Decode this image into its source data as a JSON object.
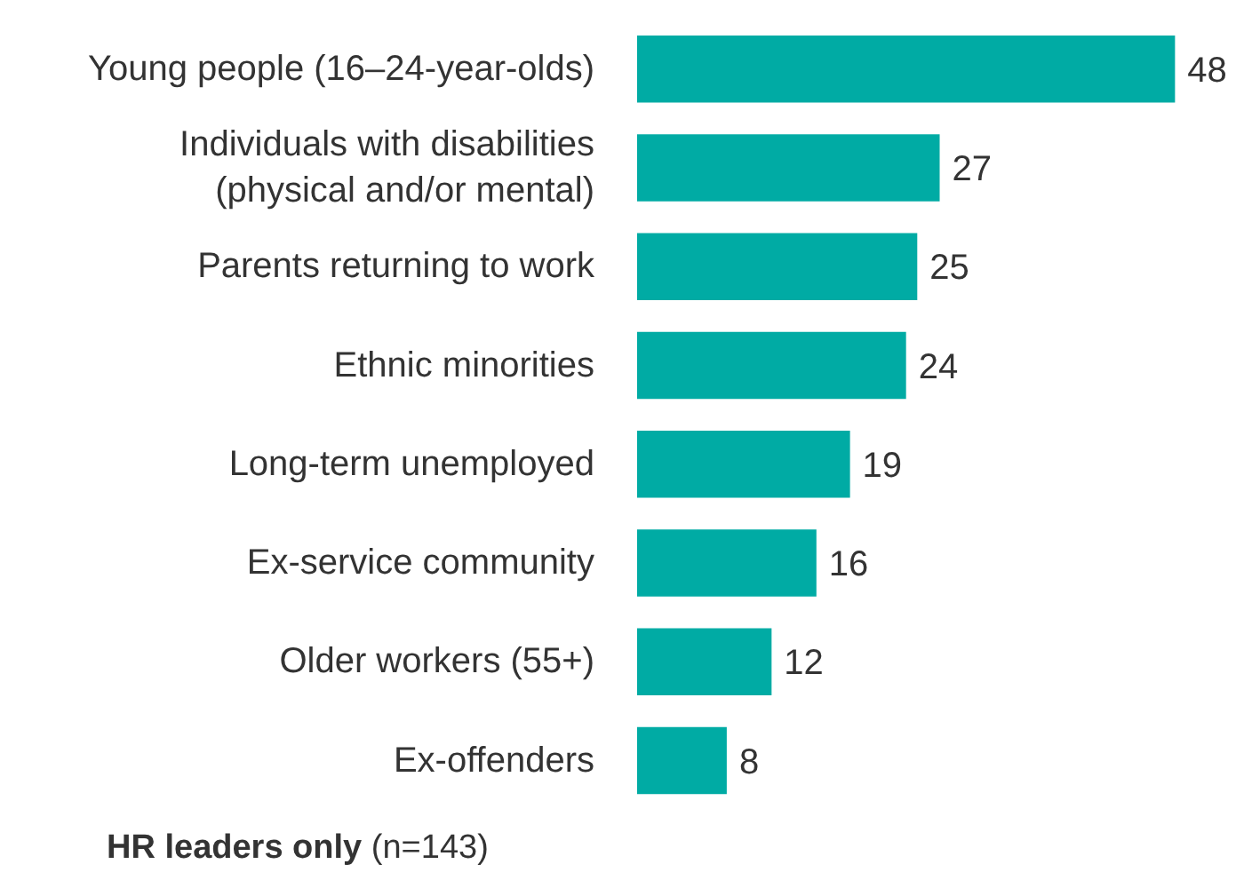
{
  "chart_data": {
    "type": "bar",
    "orientation": "horizontal",
    "categories": [
      "Young people (16–24-year-olds)",
      "Individuals with disabilities\n(physical and/or mental)",
      "Parents returning to work",
      "Ethnic minorities",
      "Long-term unemployed",
      "Ex-service community",
      "Older workers (55+)",
      "Ex-offenders"
    ],
    "values": [
      48,
      27,
      25,
      24,
      19,
      16,
      12,
      8
    ],
    "color": "#00aba4",
    "data_labels": true,
    "grid": false,
    "annotations": [
      "HR leaders only",
      "(n=143)"
    ]
  }
}
